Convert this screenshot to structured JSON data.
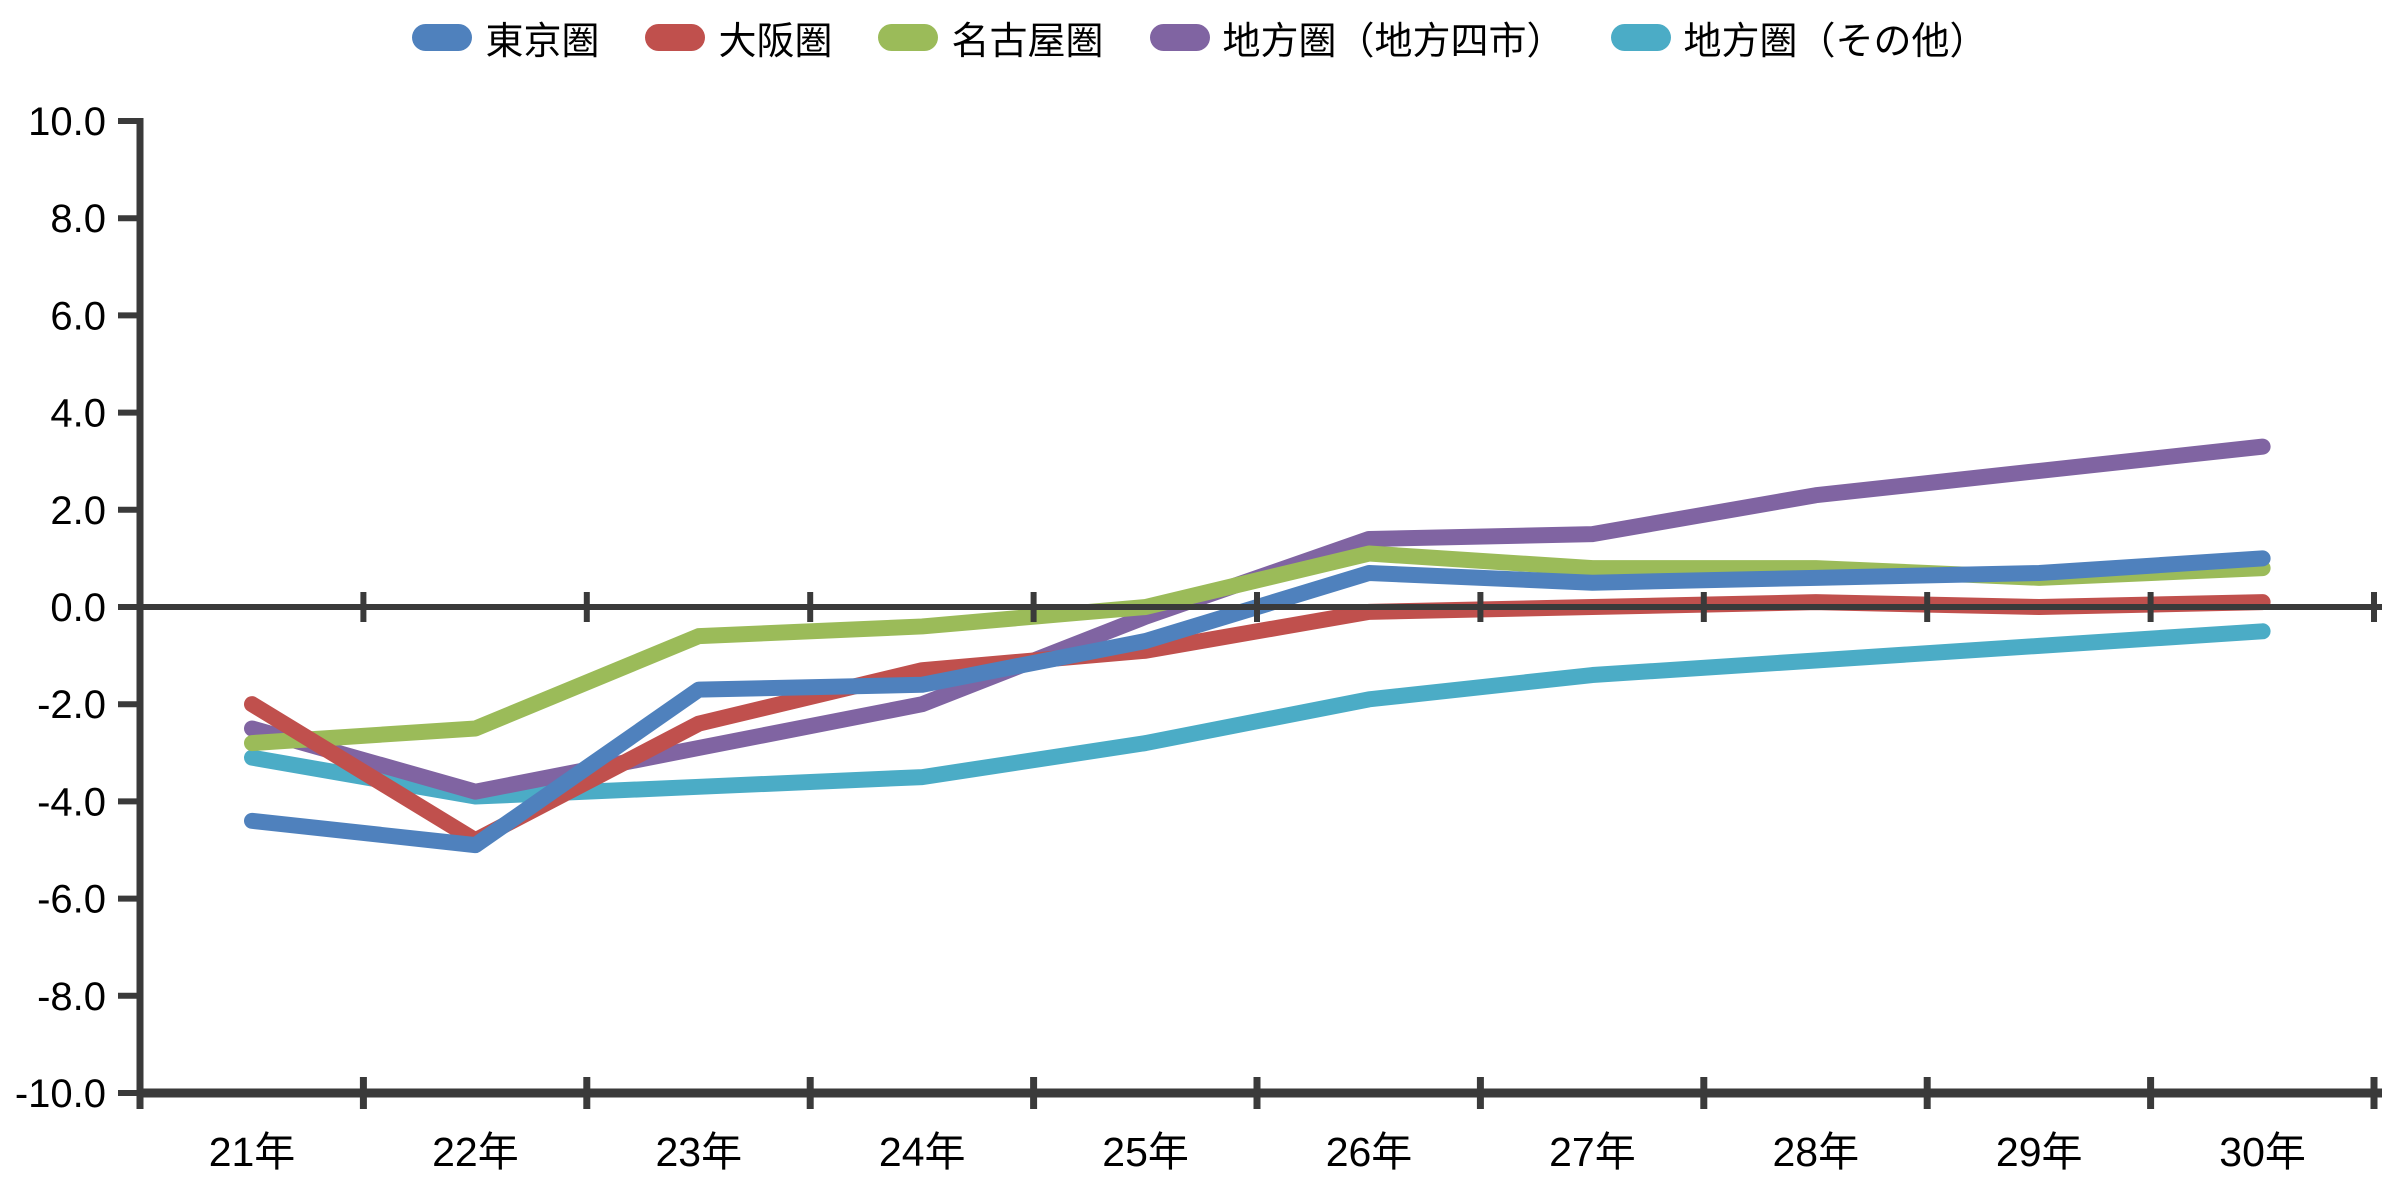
{
  "chart_data": {
    "type": "line",
    "title": "",
    "xlabel": "",
    "ylabel": "",
    "categories": [
      "21年",
      "22年",
      "23年",
      "24年",
      "25年",
      "26年",
      "27年",
      "28年",
      "29年",
      "30年"
    ],
    "series": [
      {
        "id": "tokyo",
        "name": "東京圏",
        "color": "#4F81BD",
        "values": [
          -4.4,
          -4.9,
          -1.7,
          -1.6,
          -0.7,
          0.7,
          0.5,
          0.6,
          0.7,
          1.0
        ]
      },
      {
        "id": "osaka",
        "name": "大阪圏",
        "color": "#C0504D",
        "values": [
          -2.0,
          -4.8,
          -2.4,
          -1.3,
          -0.9,
          -0.1,
          0.0,
          0.1,
          0.0,
          0.1
        ]
      },
      {
        "id": "nagoya",
        "name": "名古屋圏",
        "color": "#9BBB59",
        "values": [
          -2.8,
          -2.5,
          -0.6,
          -0.4,
          0.0,
          1.1,
          0.8,
          0.8,
          0.6,
          0.8
        ]
      },
      {
        "id": "regional-four-cities",
        "name": "地方圏（地方四市）",
        "color": "#8064A2",
        "values": [
          -2.5,
          -3.8,
          -2.9,
          -2.0,
          -0.2,
          1.4,
          1.5,
          2.3,
          2.8,
          3.3
        ]
      },
      {
        "id": "regional-other",
        "name": "地方圏（その他）",
        "color": "#4BACC6",
        "values": [
          -3.1,
          -3.9,
          -3.7,
          -3.5,
          -2.8,
          -1.9,
          -1.4,
          -1.1,
          -0.8,
          -0.5
        ]
      }
    ],
    "ylim": [
      -10.0,
      10.0
    ],
    "y_tick_step": 2.0,
    "y_tick_labels": [
      "10.0",
      "8.0",
      "6.0",
      "4.0",
      "2.0",
      "0.0",
      "-2.0",
      "-4.0",
      "-6.0",
      "-8.0",
      "-10.0"
    ],
    "legend_position": "top",
    "grid": "zero-line-only",
    "axis_color": "#3a3a3a"
  }
}
